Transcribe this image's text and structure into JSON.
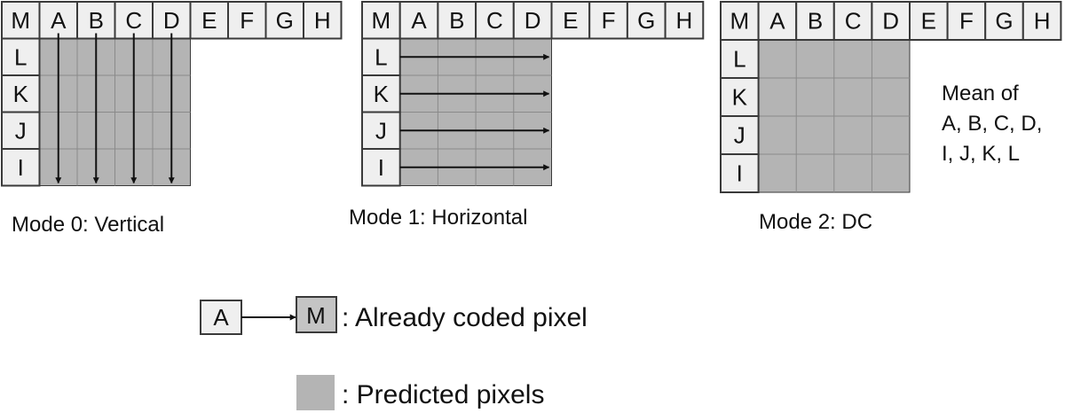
{
  "colors": {
    "predicted_fill": "#b4b4b4",
    "neighbor_fill": "#efefef",
    "cell_border": "#3a3a3a",
    "arrow": "#111111"
  },
  "modes": [
    {
      "id": "mode-0",
      "top_labels": [
        "M",
        "A",
        "B",
        "C",
        "D",
        "E",
        "F",
        "G",
        "H"
      ],
      "left_labels": [
        "L",
        "K",
        "J",
        "I"
      ],
      "direction": "vertical",
      "caption": "Mode 0: Vertical",
      "note": []
    },
    {
      "id": "mode-1",
      "top_labels": [
        "M",
        "A",
        "B",
        "C",
        "D",
        "E",
        "F",
        "G",
        "H"
      ],
      "left_labels": [
        "L",
        "K",
        "J",
        "I"
      ],
      "direction": "horizontal",
      "caption": "Mode 1: Horizontal",
      "note": []
    },
    {
      "id": "mode-2",
      "top_labels": [
        "M",
        "A",
        "B",
        "C",
        "D",
        "E",
        "F",
        "G",
        "H"
      ],
      "left_labels": [
        "L",
        "K",
        "J",
        "I"
      ],
      "direction": "none",
      "caption": "Mode 2: DC",
      "note": [
        "Mean of",
        "A, B, C, D,",
        "I, J, K, L"
      ]
    }
  ],
  "legend": {
    "coded_from": "A",
    "coded_to": "M",
    "coded_label": ": Already coded pixel",
    "predicted_label": ": Predicted pixels"
  }
}
